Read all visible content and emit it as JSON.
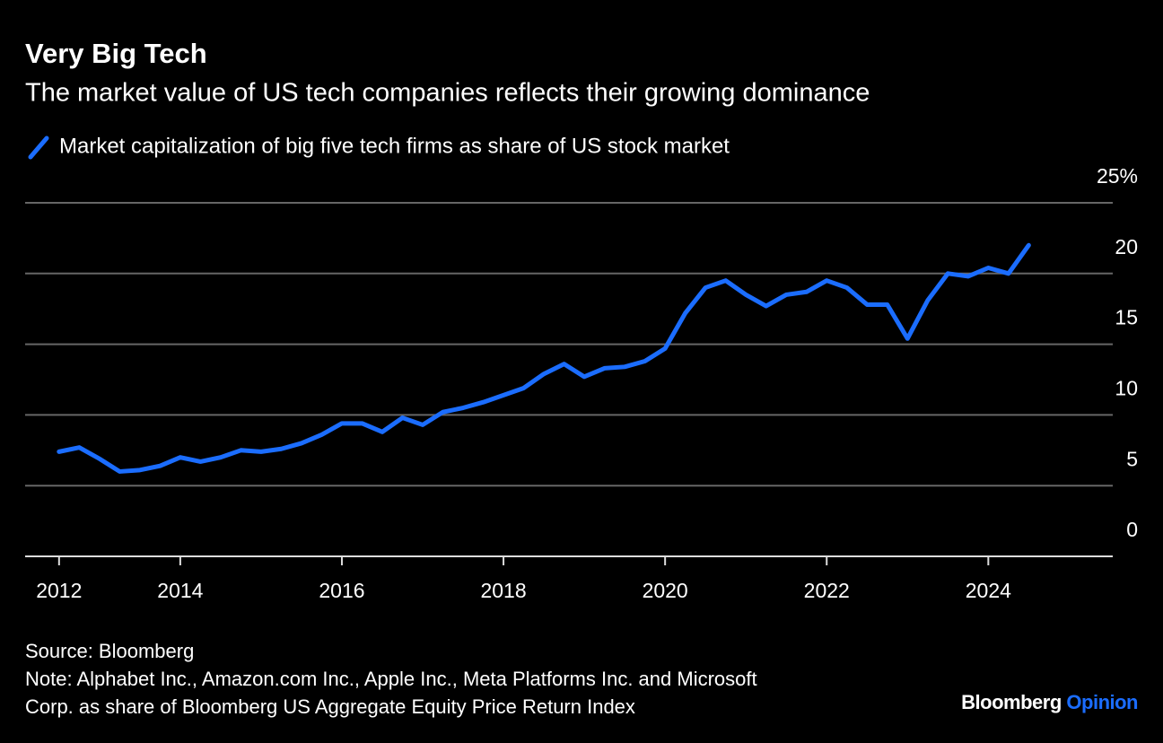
{
  "chart_data": {
    "type": "line",
    "title": "Very Big Tech",
    "subtitle": "The market value of US tech companies reflects their growing dominance",
    "series": [
      {
        "name": "Market capitalization of big five tech firms as share of US stock market",
        "color": "#1b6dff",
        "values": [
          7.4,
          7.7,
          6.9,
          6.0,
          6.1,
          6.4,
          7.0,
          6.7,
          7.0,
          7.5,
          7.4,
          7.6,
          8.0,
          8.6,
          9.4,
          9.4,
          8.8,
          9.8,
          9.3,
          10.2,
          10.5,
          10.9,
          11.4,
          11.9,
          12.9,
          13.6,
          12.7,
          13.3,
          13.4,
          13.8,
          14.7,
          17.2,
          19.0,
          19.5,
          18.5,
          17.7,
          18.5,
          18.7,
          19.5,
          19.0,
          17.8,
          17.8,
          15.4,
          18.1,
          20.0,
          19.8,
          20.4,
          20.0,
          22.0
        ]
      }
    ],
    "x": [
      2012.5,
      2012.75,
      2013,
      2013.25,
      2013.5,
      2013.75,
      2014,
      2014.25,
      2014.5,
      2014.75,
      2015,
      2015.25,
      2015.5,
      2015.75,
      2016,
      2016.25,
      2016.5,
      2016.75,
      2017,
      2017.25,
      2017.5,
      2017.75,
      2018,
      2018.25,
      2018.5,
      2018.75,
      2019,
      2019.25,
      2019.5,
      2019.75,
      2020,
      2020.25,
      2020.5,
      2020.75,
      2021,
      2021.25,
      2021.5,
      2021.75,
      2022,
      2022.25,
      2022.5,
      2022.75,
      2023,
      2023.25,
      2023.5,
      2023.75,
      2024,
      2024.25,
      2024.5
    ],
    "xlim": [
      2012.08,
      2025.54
    ],
    "xticks": [
      {
        "value": 2012.5,
        "label": "2012"
      },
      2014,
      2016,
      2018,
      2020,
      2022,
      2024
    ],
    "ylim": [
      0,
      25
    ],
    "yticks": [
      0,
      5,
      10,
      15,
      20,
      {
        "value": 25,
        "label": "25%"
      }
    ],
    "grid": true,
    "source": "Source: Bloomberg",
    "note_lines": [
      "Note: Alphabet Inc., Amazon.com Inc., Apple Inc., Meta Platforms Inc. and Microsoft",
      "Corp. as share of Bloomberg US Aggregate Equity Price Return Index"
    ],
    "brand": [
      "Bloomberg",
      "Opinion"
    ]
  }
}
